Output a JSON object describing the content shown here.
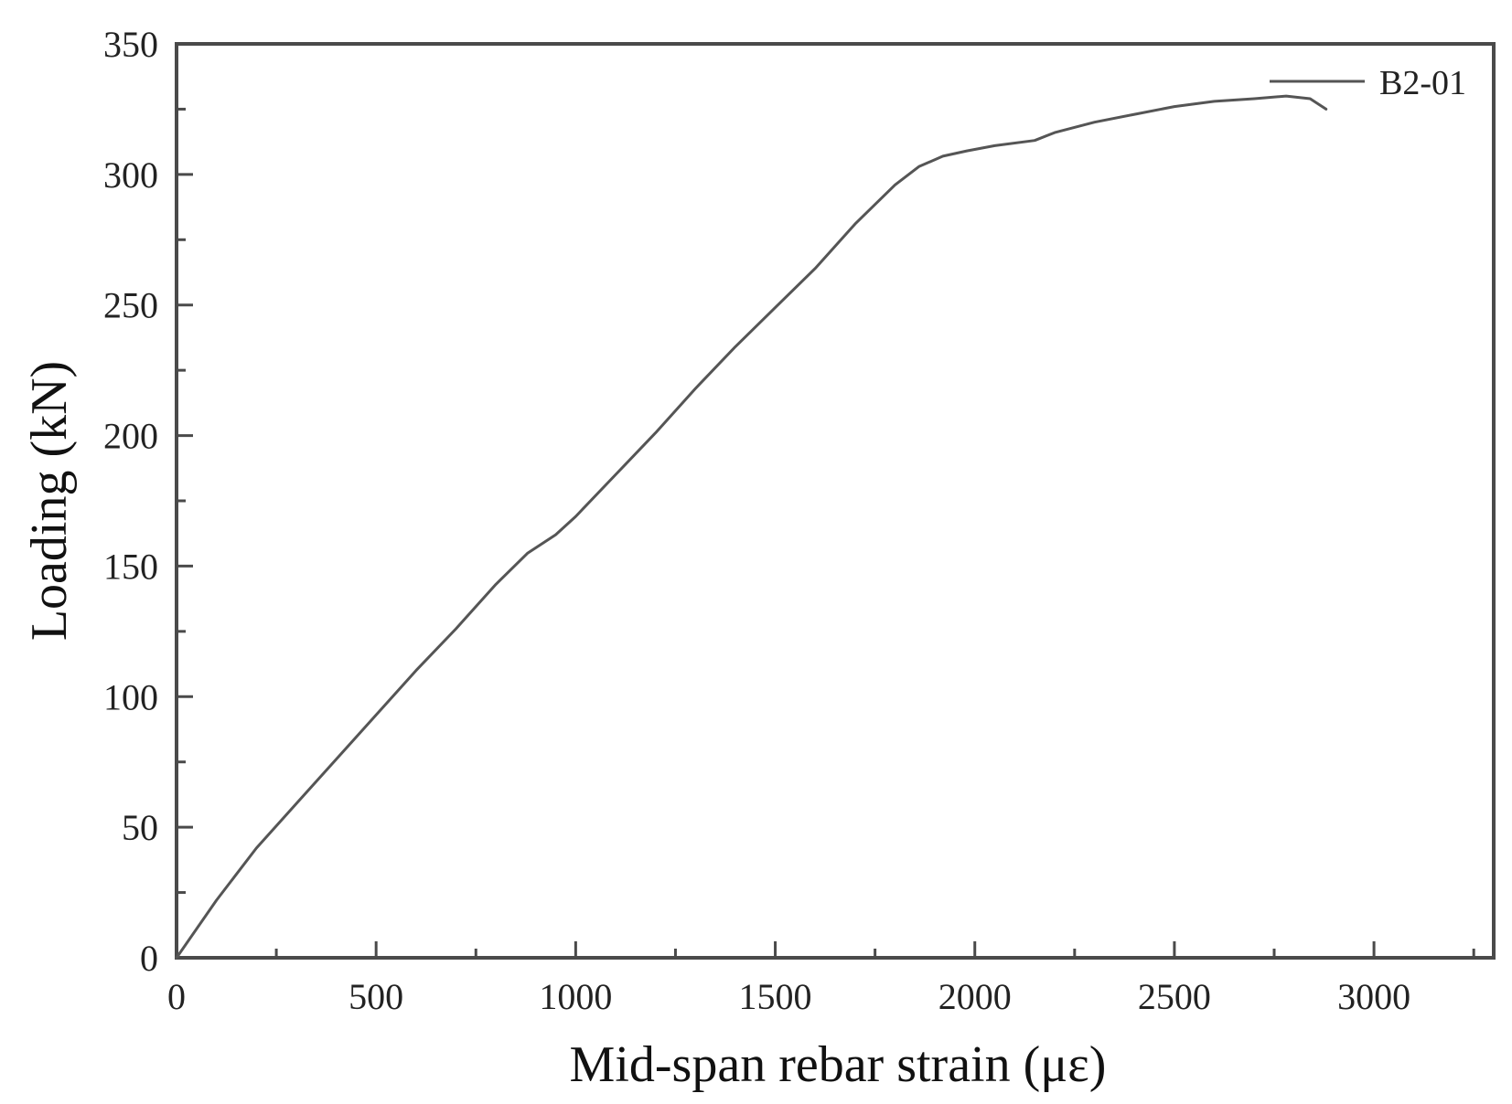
{
  "chart_data": {
    "type": "line",
    "title": "",
    "xlabel": "Mid-span rebar strain (με)",
    "ylabel": "Loading (kN)",
    "xlim": [
      0,
      3300
    ],
    "ylim": [
      0,
      350
    ],
    "xticks": [
      0,
      500,
      1000,
      1500,
      2000,
      2500,
      3000
    ],
    "yticks": [
      0,
      50,
      100,
      150,
      200,
      250,
      300,
      350
    ],
    "xtick_labels": [
      "0",
      "500",
      "1000",
      "1500",
      "2000",
      "2500",
      "3000"
    ],
    "ytick_labels": [
      "0",
      "50",
      "100",
      "150",
      "200",
      "250",
      "300",
      "350"
    ],
    "grid": false,
    "legend_position": "top-right",
    "series": [
      {
        "name": "B2-01",
        "color": "#555555",
        "x": [
          0,
          100,
          200,
          300,
          400,
          500,
          600,
          700,
          800,
          880,
          950,
          1000,
          1100,
          1200,
          1300,
          1400,
          1500,
          1600,
          1700,
          1800,
          1860,
          1920,
          1980,
          2050,
          2150,
          2200,
          2300,
          2400,
          2500,
          2600,
          2700,
          2780,
          2840,
          2880
        ],
        "y": [
          0,
          22,
          42,
          59,
          76,
          93,
          110,
          126,
          143,
          155,
          162,
          169,
          185,
          201,
          218,
          234,
          249,
          264,
          281,
          296,
          303,
          307,
          309,
          311,
          313,
          316,
          320,
          323,
          326,
          328,
          329,
          330,
          329,
          325
        ]
      }
    ]
  }
}
